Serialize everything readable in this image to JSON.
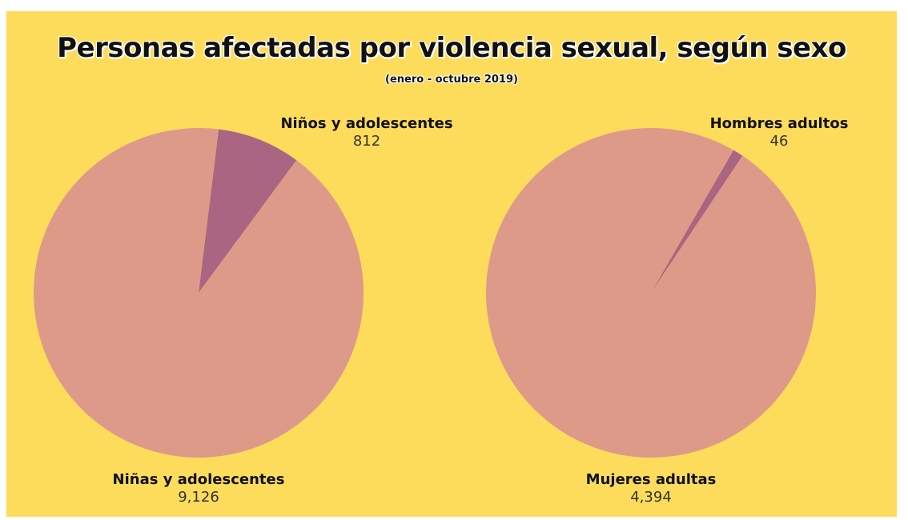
{
  "chart_data": [
    {
      "type": "pie",
      "title": "Personas afectadas por violencia sexual, según sexo",
      "subtitle": "(enero - octubre 2019)",
      "slices": [
        {
          "label": "Niños y adolescentes",
          "value": 812,
          "value_label": "812",
          "color": "#AA6582"
        },
        {
          "label": "Niñas y adolescentes",
          "value": 9126,
          "value_label": "9,126",
          "color": "#DE9A89"
        }
      ]
    },
    {
      "type": "pie",
      "slices": [
        {
          "label": "Hombres adultos",
          "value": 46,
          "value_label": "46",
          "color": "#AA6582"
        },
        {
          "label": "Mujeres adultas",
          "value": 4394,
          "value_label": "4,394",
          "color": "#DE9A89"
        }
      ]
    }
  ],
  "colors": {
    "background": "#FDDC5C",
    "male": "#AA6582",
    "female": "#DE9A89"
  }
}
